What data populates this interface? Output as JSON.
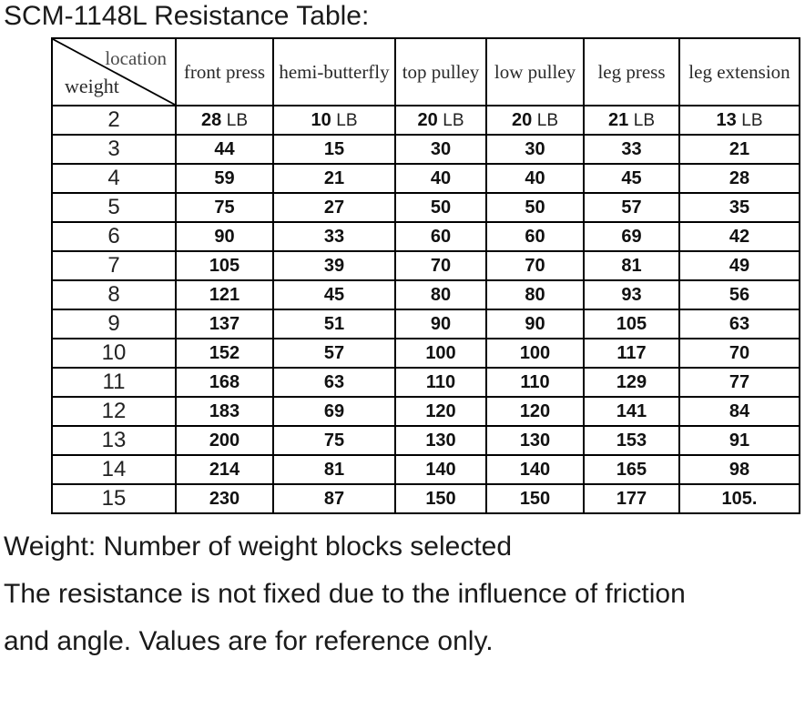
{
  "title": "SCM-1148L Resistance Table:",
  "table": {
    "corner": {
      "top_right": "location",
      "bottom_left": "weight"
    },
    "columns": [
      "front press",
      "hemi-butterfly",
      "top pulley",
      "low pulley",
      "leg press",
      "leg extension"
    ],
    "unit_label": "LB",
    "rows": [
      {
        "weight": "2",
        "unit": "LB",
        "values": [
          "28",
          "10",
          "20",
          "20",
          "21",
          "13"
        ]
      },
      {
        "weight": "3",
        "unit": "",
        "values": [
          "44",
          "15",
          "30",
          "30",
          "33",
          "21"
        ]
      },
      {
        "weight": "4",
        "unit": "",
        "values": [
          "59",
          "21",
          "40",
          "40",
          "45",
          "28"
        ]
      },
      {
        "weight": "5",
        "unit": "",
        "values": [
          "75",
          "27",
          "50",
          "50",
          "57",
          "35"
        ]
      },
      {
        "weight": "6",
        "unit": "",
        "values": [
          "90",
          "33",
          "60",
          "60",
          "69",
          "42"
        ]
      },
      {
        "weight": "7",
        "unit": "",
        "values": [
          "105",
          "39",
          "70",
          "70",
          "81",
          "49"
        ]
      },
      {
        "weight": "8",
        "unit": "",
        "values": [
          "121",
          "45",
          "80",
          "80",
          "93",
          "56"
        ]
      },
      {
        "weight": "9",
        "unit": "",
        "values": [
          "137",
          "51",
          "90",
          "90",
          "105",
          "63"
        ]
      },
      {
        "weight": "10",
        "unit": "",
        "values": [
          "152",
          "57",
          "100",
          "100",
          "117",
          "70"
        ]
      },
      {
        "weight": "11",
        "unit": "",
        "values": [
          "168",
          "63",
          "110",
          "110",
          "129",
          "77"
        ]
      },
      {
        "weight": "12",
        "unit": "",
        "values": [
          "183",
          "69",
          "120",
          "120",
          "141",
          "84"
        ]
      },
      {
        "weight": "13",
        "unit": "",
        "values": [
          "200",
          "75",
          "130",
          "130",
          "153",
          "91"
        ]
      },
      {
        "weight": "14",
        "unit": "",
        "values": [
          "214",
          "81",
          "140",
          "140",
          "165",
          "98"
        ]
      },
      {
        "weight": "15",
        "unit": "",
        "values": [
          "230",
          "87",
          "150",
          "150",
          "177",
          "105."
        ]
      }
    ]
  },
  "notes": [
    "Weight: Number of weight blocks selected",
    "The resistance is not fixed due to the influence of friction",
    "and angle. Values are for reference only."
  ]
}
